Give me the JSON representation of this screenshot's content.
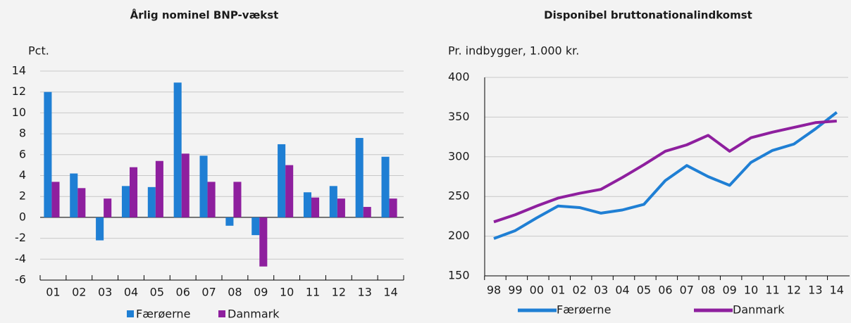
{
  "chart_data": [
    {
      "type": "bar",
      "title": "Årlig nominel BNP-vækst",
      "y_label": "Pct.",
      "categories": [
        "01",
        "02",
        "03",
        "04",
        "05",
        "06",
        "07",
        "08",
        "09",
        "10",
        "11",
        "12",
        "13",
        "14"
      ],
      "series": [
        {
          "name": "Færøerne",
          "color": "#1f7fd4",
          "values": [
            12.0,
            4.2,
            -2.2,
            3.0,
            2.9,
            12.9,
            5.9,
            -0.8,
            -1.7,
            7.0,
            2.4,
            3.0,
            7.6,
            5.8
          ]
        },
        {
          "name": "Danmark",
          "color": "#8e1f9e",
          "values": [
            3.4,
            2.8,
            1.8,
            4.8,
            5.4,
            6.1,
            3.4,
            3.4,
            -4.7,
            5.0,
            1.9,
            1.8,
            1.0,
            1.8
          ]
        }
      ],
      "ylim": [
        -6,
        14
      ],
      "yticks": [
        -6,
        -4,
        -2,
        0,
        2,
        4,
        6,
        8,
        10,
        12,
        14
      ],
      "grid": true
    },
    {
      "type": "line",
      "title": "Disponibel bruttonationalindkomst",
      "y_label": "Pr. indbygger, 1.000 kr.",
      "categories": [
        "98",
        "99",
        "00",
        "01",
        "02",
        "03",
        "04",
        "05",
        "06",
        "07",
        "08",
        "09",
        "10",
        "11",
        "12",
        "13",
        "14"
      ],
      "series": [
        {
          "name": "Færøerne",
          "color": "#1f7fd4",
          "values": [
            197,
            207,
            223,
            238,
            236,
            229,
            233,
            240,
            270,
            289,
            275,
            264,
            293,
            308,
            316,
            335,
            356
          ]
        },
        {
          "name": "Danmark",
          "color": "#8e1f9e",
          "values": [
            218,
            227,
            238,
            248,
            254,
            259,
            274,
            290,
            307,
            315,
            327,
            307,
            324,
            331,
            337,
            343,
            345
          ]
        }
      ],
      "ylim": [
        150,
        400
      ],
      "yticks": [
        150,
        200,
        250,
        300,
        350,
        400
      ],
      "grid": true
    }
  ]
}
